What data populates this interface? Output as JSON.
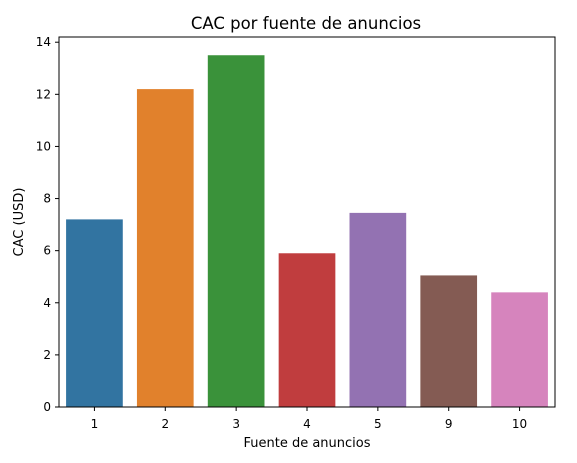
{
  "chart_data": {
    "type": "bar",
    "title": "CAC por fuente de anuncios",
    "xlabel": "Fuente de anuncios",
    "ylabel": "CAC (USD)",
    "categories": [
      "1",
      "2",
      "3",
      "4",
      "5",
      "9",
      "10"
    ],
    "values": [
      7.2,
      12.2,
      13.5,
      5.9,
      7.45,
      5.05,
      4.4
    ],
    "colors": [
      "#3274a1",
      "#e1812c",
      "#3a923a",
      "#c03d3e",
      "#9372b2",
      "#845b53",
      "#d684bd"
    ],
    "ylim": [
      0,
      14.2
    ],
    "yticks": [
      0,
      2,
      4,
      6,
      8,
      10,
      12,
      14
    ],
    "grid": false,
    "legend": false
  }
}
